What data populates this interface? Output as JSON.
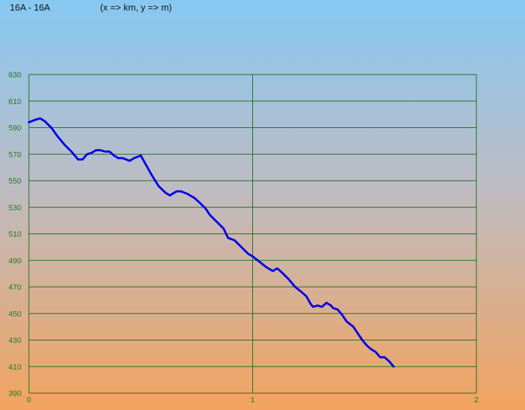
{
  "header": {
    "title": "16A - 16A",
    "subtitle": "(x => km, y => m)"
  },
  "colors": {
    "grid": "#1f6b1f",
    "line": "#0000e6",
    "tick": "#1f7a1f"
  },
  "chart_data": {
    "type": "line",
    "xlim": [
      0,
      2
    ],
    "ylim": [
      390,
      630
    ],
    "x_ticks": [
      "0",
      "1",
      "2"
    ],
    "y_ticks": [
      "390",
      "410",
      "430",
      "450",
      "470",
      "490",
      "510",
      "530",
      "550",
      "570",
      "590",
      "610",
      "630"
    ],
    "series": [
      {
        "points": [
          [
            0.0,
            594
          ],
          [
            0.03,
            596
          ],
          [
            0.05,
            597
          ],
          [
            0.07,
            595
          ],
          [
            0.1,
            590
          ],
          [
            0.13,
            583
          ],
          [
            0.16,
            577
          ],
          [
            0.19,
            572
          ],
          [
            0.22,
            566
          ],
          [
            0.24,
            566
          ],
          [
            0.26,
            570
          ],
          [
            0.28,
            571
          ],
          [
            0.3,
            573
          ],
          [
            0.32,
            573
          ],
          [
            0.34,
            572
          ],
          [
            0.36,
            572
          ],
          [
            0.38,
            569
          ],
          [
            0.4,
            567
          ],
          [
            0.42,
            567
          ],
          [
            0.45,
            565
          ],
          [
            0.47,
            567
          ],
          [
            0.5,
            569
          ],
          [
            0.52,
            563
          ],
          [
            0.55,
            554
          ],
          [
            0.58,
            546
          ],
          [
            0.61,
            541
          ],
          [
            0.63,
            539
          ],
          [
            0.66,
            542
          ],
          [
            0.68,
            542
          ],
          [
            0.71,
            540
          ],
          [
            0.74,
            537
          ],
          [
            0.76,
            534
          ],
          [
            0.79,
            529
          ],
          [
            0.81,
            524
          ],
          [
            0.84,
            519
          ],
          [
            0.87,
            514
          ],
          [
            0.89,
            507
          ],
          [
            0.92,
            505
          ],
          [
            0.95,
            500
          ],
          [
            0.98,
            495
          ],
          [
            1.0,
            493
          ],
          [
            1.03,
            489
          ],
          [
            1.06,
            485
          ],
          [
            1.09,
            482
          ],
          [
            1.11,
            484
          ],
          [
            1.13,
            481
          ],
          [
            1.16,
            476
          ],
          [
            1.19,
            470
          ],
          [
            1.22,
            466
          ],
          [
            1.24,
            463
          ],
          [
            1.26,
            457
          ],
          [
            1.27,
            455
          ],
          [
            1.29,
            456
          ],
          [
            1.31,
            455
          ],
          [
            1.33,
            458
          ],
          [
            1.34,
            457
          ],
          [
            1.35,
            456
          ],
          [
            1.36,
            454
          ],
          [
            1.38,
            453
          ],
          [
            1.4,
            449
          ],
          [
            1.42,
            444
          ],
          [
            1.45,
            440
          ],
          [
            1.47,
            435
          ],
          [
            1.49,
            430
          ],
          [
            1.51,
            426
          ],
          [
            1.53,
            423
          ],
          [
            1.55,
            421
          ],
          [
            1.57,
            417
          ],
          [
            1.59,
            417
          ],
          [
            1.61,
            414
          ],
          [
            1.62,
            412
          ],
          [
            1.63,
            410
          ]
        ]
      }
    ],
    "grid": true
  }
}
